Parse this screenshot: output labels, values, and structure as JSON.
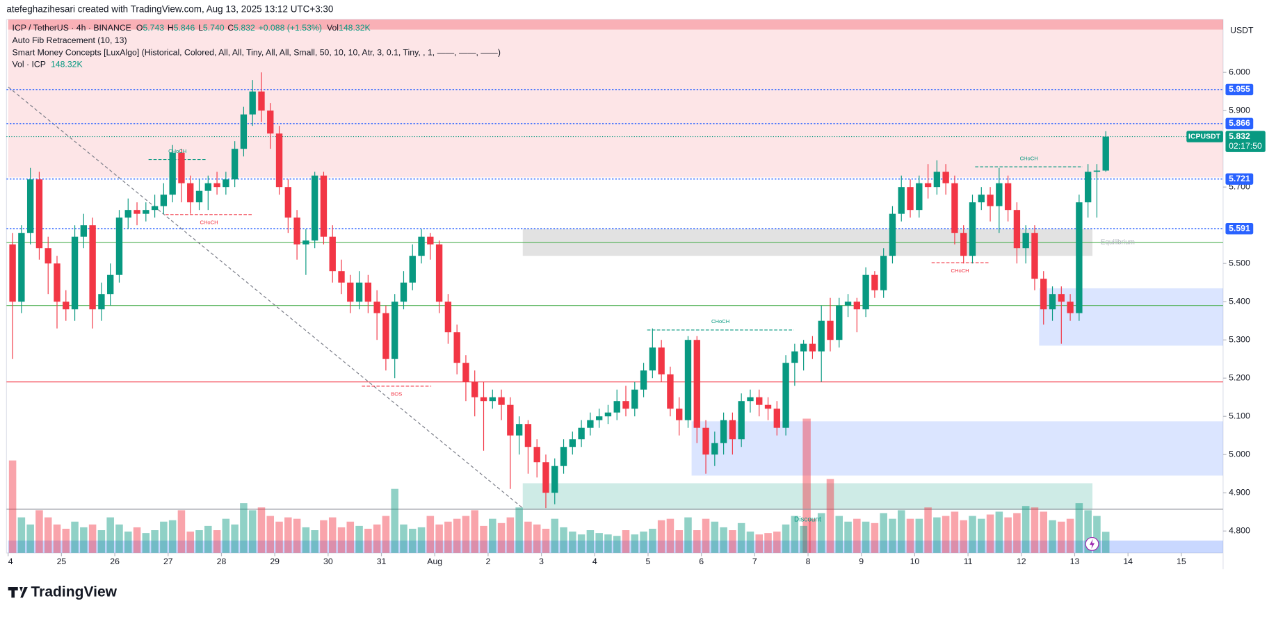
{
  "chart_data": {
    "type": "candlestick",
    "header": "atefeghazihesari created with TradingView.com, Aug 13, 2025 13:12 UTC+3:30",
    "symbol": "ICP / TetherUS · 4h · BINANCE",
    "ohlc_legend": [
      {
        "label": "O",
        "text": "5.743"
      },
      {
        "label": "H",
        "text": "5.846"
      },
      {
        "label": "L",
        "text": "5.740"
      },
      {
        "label": "C",
        "text": "5.832"
      }
    ],
    "change": "+0.088 (+1.53%)",
    "vol_legend": {
      "label": "Vol",
      "text": "148.32K"
    },
    "indicators": [
      "Auto Fib Retracement (10, 13)",
      "Smart Money Concepts [LuxAlgo] (Historical, Colored, All, All, Tiny, All, All, Small, 50, 10, 10, Atr, 3, 0.1, Tiny, , 1, ——, ——, ——)"
    ],
    "vol_indicator": {
      "label": "Vol · ICP",
      "text": "148.32K"
    },
    "currency": "USDT",
    "brand": "TradingView",
    "up_color": "#089981",
    "down_color": "#f23645",
    "ylim": [
      4.7426,
      6.1383
    ],
    "yticks": [
      {
        "value": 6.0,
        "label": "6.000"
      },
      {
        "value": 5.9,
        "label": "5.900"
      },
      {
        "value": 5.7,
        "label": "5.700"
      },
      {
        "value": 5.5,
        "label": "5.500"
      },
      {
        "value": 5.4,
        "label": "5.400"
      },
      {
        "value": 5.3,
        "label": "5.300"
      },
      {
        "value": 5.2,
        "label": "5.200"
      },
      {
        "value": 5.1,
        "label": "5.100"
      },
      {
        "value": 5.0,
        "label": "5.000"
      },
      {
        "value": 4.9,
        "label": "4.900"
      },
      {
        "value": 4.8,
        "label": "4.800"
      }
    ],
    "xlim": [
      0,
      136.7
    ],
    "xticks": [
      {
        "value": 0,
        "label": "4"
      },
      {
        "value": 6,
        "label": "25"
      },
      {
        "value": 12,
        "label": "26"
      },
      {
        "value": 18,
        "label": "27"
      },
      {
        "value": 24,
        "label": "28"
      },
      {
        "value": 30,
        "label": "29"
      },
      {
        "value": 36,
        "label": "30"
      },
      {
        "value": 42,
        "label": "31"
      },
      {
        "value": 48,
        "label": "Aug"
      },
      {
        "value": 54,
        "label": "2"
      },
      {
        "value": 60,
        "label": "3"
      },
      {
        "value": 66,
        "label": "4"
      },
      {
        "value": 72,
        "label": "5"
      },
      {
        "value": 78,
        "label": "6"
      },
      {
        "value": 84,
        "label": "7"
      },
      {
        "value": 90,
        "label": "8"
      },
      {
        "value": 96,
        "label": "9"
      },
      {
        "value": 102,
        "label": "10"
      },
      {
        "value": 108,
        "label": "11"
      },
      {
        "value": 114,
        "label": "12"
      },
      {
        "value": 120,
        "label": "13"
      },
      {
        "value": 126,
        "label": "14"
      },
      {
        "value": 132,
        "label": "15"
      }
    ],
    "candles": [
      [
        5.55,
        5.58,
        5.25,
        5.4
      ],
      [
        5.4,
        5.6,
        5.37,
        5.58
      ],
      [
        5.58,
        5.75,
        5.55,
        5.72
      ],
      [
        5.72,
        5.74,
        5.51,
        5.54
      ],
      [
        5.54,
        5.57,
        5.42,
        5.5
      ],
      [
        5.5,
        5.52,
        5.33,
        5.4
      ],
      [
        5.4,
        5.43,
        5.35,
        5.38
      ],
      [
        5.38,
        5.6,
        5.35,
        5.57
      ],
      [
        5.57,
        5.63,
        5.54,
        5.6
      ],
      [
        5.6,
        5.62,
        5.33,
        5.38
      ],
      [
        5.38,
        5.45,
        5.35,
        5.42
      ],
      [
        5.42,
        5.5,
        5.39,
        5.47
      ],
      [
        5.47,
        5.64,
        5.45,
        5.62
      ],
      [
        5.62,
        5.67,
        5.59,
        5.64
      ],
      [
        5.64,
        5.66,
        5.6,
        5.63
      ],
      [
        5.63,
        5.66,
        5.61,
        5.64
      ],
      [
        5.64,
        5.68,
        5.62,
        5.65
      ],
      [
        5.65,
        5.71,
        5.63,
        5.68
      ],
      [
        5.68,
        5.81,
        5.66,
        5.79
      ],
      [
        5.79,
        5.8,
        5.66,
        5.71
      ],
      [
        5.71,
        5.73,
        5.63,
        5.66
      ],
      [
        5.66,
        5.72,
        5.64,
        5.69
      ],
      [
        5.69,
        5.73,
        5.64,
        5.71
      ],
      [
        5.71,
        5.74,
        5.68,
        5.7
      ],
      [
        5.7,
        5.74,
        5.68,
        5.72
      ],
      [
        5.72,
        5.82,
        5.7,
        5.8
      ],
      [
        5.8,
        5.91,
        5.78,
        5.89
      ],
      [
        5.89,
        5.98,
        5.86,
        5.95
      ],
      [
        5.95,
        6.0,
        5.87,
        5.9
      ],
      [
        5.9,
        5.92,
        5.8,
        5.84
      ],
      [
        5.84,
        5.86,
        5.68,
        5.7
      ],
      [
        5.7,
        5.72,
        5.58,
        5.62
      ],
      [
        5.62,
        5.64,
        5.51,
        5.55
      ],
      [
        5.55,
        5.59,
        5.47,
        5.56
      ],
      [
        5.56,
        5.74,
        5.54,
        5.73
      ],
      [
        5.73,
        5.74,
        5.55,
        5.57
      ],
      [
        5.57,
        5.6,
        5.45,
        5.48
      ],
      [
        5.48,
        5.51,
        5.42,
        5.45
      ],
      [
        5.45,
        5.47,
        5.37,
        5.4
      ],
      [
        5.4,
        5.48,
        5.38,
        5.45
      ],
      [
        5.45,
        5.47,
        5.37,
        5.4
      ],
      [
        5.4,
        5.43,
        5.3,
        5.37
      ],
      [
        5.37,
        5.39,
        5.22,
        5.25
      ],
      [
        5.25,
        5.42,
        5.2,
        5.4
      ],
      [
        5.4,
        5.48,
        5.38,
        5.45
      ],
      [
        5.45,
        5.55,
        5.43,
        5.52
      ],
      [
        5.52,
        5.59,
        5.5,
        5.57
      ],
      [
        5.57,
        5.58,
        5.51,
        5.55
      ],
      [
        5.55,
        5.56,
        5.37,
        5.4
      ],
      [
        5.4,
        5.42,
        5.29,
        5.32
      ],
      [
        5.32,
        5.34,
        5.21,
        5.24
      ],
      [
        5.24,
        5.26,
        5.14,
        5.19
      ],
      [
        5.19,
        5.22,
        5.1,
        5.15
      ],
      [
        5.15,
        5.19,
        5.01,
        5.14
      ],
      [
        5.14,
        5.17,
        5.12,
        5.15
      ],
      [
        5.15,
        5.17,
        5.09,
        5.13
      ],
      [
        5.13,
        5.15,
        4.91,
        5.05
      ],
      [
        5.05,
        5.1,
        5.0,
        5.08
      ],
      [
        5.08,
        5.09,
        4.95,
        5.02
      ],
      [
        5.02,
        5.04,
        4.94,
        4.98
      ],
      [
        4.98,
        5.0,
        4.86,
        4.9
      ],
      [
        4.9,
        4.99,
        4.87,
        4.97
      ],
      [
        4.97,
        5.04,
        4.95,
        5.02
      ],
      [
        5.02,
        5.06,
        5.0,
        5.04
      ],
      [
        5.04,
        5.09,
        5.02,
        5.07
      ],
      [
        5.07,
        5.11,
        5.05,
        5.09
      ],
      [
        5.09,
        5.12,
        5.07,
        5.1
      ],
      [
        5.1,
        5.13,
        5.08,
        5.11
      ],
      [
        5.11,
        5.17,
        5.09,
        5.14
      ],
      [
        5.14,
        5.18,
        5.1,
        5.12
      ],
      [
        5.12,
        5.19,
        5.1,
        5.17
      ],
      [
        5.17,
        5.24,
        5.15,
        5.22
      ],
      [
        5.22,
        5.33,
        5.2,
        5.28
      ],
      [
        5.28,
        5.3,
        5.19,
        5.21
      ],
      [
        5.21,
        5.23,
        5.1,
        5.12
      ],
      [
        5.12,
        5.15,
        5.05,
        5.09
      ],
      [
        5.09,
        5.31,
        5.07,
        5.3
      ],
      [
        5.3,
        5.31,
        5.03,
        5.07
      ],
      [
        5.07,
        5.09,
        4.95,
        5.0
      ],
      [
        5.0,
        5.06,
        4.97,
        5.03
      ],
      [
        5.03,
        5.11,
        5.0,
        5.09
      ],
      [
        5.09,
        5.11,
        5.0,
        5.04
      ],
      [
        5.04,
        5.16,
        5.02,
        5.14
      ],
      [
        5.14,
        5.17,
        5.11,
        5.15
      ],
      [
        5.15,
        5.17,
        5.1,
        5.13
      ],
      [
        5.13,
        5.15,
        5.09,
        5.12
      ],
      [
        5.12,
        5.14,
        5.05,
        5.07
      ],
      [
        5.07,
        5.26,
        5.05,
        5.24
      ],
      [
        5.24,
        5.29,
        5.18,
        5.27
      ],
      [
        5.27,
        5.3,
        5.22,
        5.29
      ],
      [
        5.29,
        5.31,
        5.25,
        5.27
      ],
      [
        5.27,
        5.39,
        5.19,
        5.35
      ],
      [
        5.35,
        5.41,
        5.27,
        5.3
      ],
      [
        5.3,
        5.41,
        5.28,
        5.39
      ],
      [
        5.39,
        5.42,
        5.36,
        5.4
      ],
      [
        5.4,
        5.41,
        5.32,
        5.38
      ],
      [
        5.38,
        5.49,
        5.36,
        5.47
      ],
      [
        5.47,
        5.48,
        5.41,
        5.43
      ],
      [
        5.43,
        5.54,
        5.41,
        5.52
      ],
      [
        5.52,
        5.65,
        5.5,
        5.63
      ],
      [
        5.63,
        5.73,
        5.61,
        5.7
      ],
      [
        5.7,
        5.72,
        5.62,
        5.64
      ],
      [
        5.64,
        5.73,
        5.62,
        5.71
      ],
      [
        5.71,
        5.76,
        5.67,
        5.7
      ],
      [
        5.7,
        5.77,
        5.68,
        5.74
      ],
      [
        5.74,
        5.76,
        5.68,
        5.71
      ],
      [
        5.71,
        5.73,
        5.55,
        5.58
      ],
      [
        5.58,
        5.6,
        5.5,
        5.52
      ],
      [
        5.52,
        5.68,
        5.5,
        5.66
      ],
      [
        5.66,
        5.7,
        5.64,
        5.68
      ],
      [
        5.68,
        5.7,
        5.61,
        5.65
      ],
      [
        5.65,
        5.75,
        5.58,
        5.71
      ],
      [
        5.71,
        5.73,
        5.61,
        5.64
      ],
      [
        5.64,
        5.66,
        5.5,
        5.54
      ],
      [
        5.54,
        5.6,
        5.5,
        5.58
      ],
      [
        5.58,
        5.6,
        5.43,
        5.46
      ],
      [
        5.46,
        5.48,
        5.34,
        5.38
      ],
      [
        5.38,
        5.44,
        5.35,
        5.42
      ],
      [
        5.42,
        5.44,
        5.29,
        5.4
      ],
      [
        5.4,
        5.42,
        5.35,
        5.37
      ],
      [
        5.37,
        5.68,
        5.35,
        5.66
      ],
      [
        5.66,
        5.76,
        5.62,
        5.74
      ],
      [
        5.74,
        5.76,
        5.62,
        5.743
      ],
      [
        5.743,
        5.846,
        5.74,
        5.832
      ]
    ],
    "volume_lim": [
      0,
      800
    ],
    "volume": [
      650,
      250,
      200,
      300,
      250,
      200,
      170,
      220,
      180,
      200,
      160,
      250,
      200,
      150,
      180,
      140,
      160,
      220,
      230,
      300,
      150,
      160,
      190,
      160,
      240,
      200,
      350,
      300,
      320,
      260,
      220,
      250,
      240,
      180,
      160,
      230,
      250,
      180,
      220,
      190,
      170,
      200,
      260,
      450,
      200,
      170,
      180,
      260,
      200,
      220,
      240,
      260,
      300,
      190,
      240,
      210,
      250,
      320,
      220,
      200,
      170,
      240,
      180,
      150,
      130,
      160,
      140,
      130,
      120,
      160,
      130,
      150,
      170,
      230,
      240,
      160,
      250,
      160,
      240,
      220,
      180,
      160,
      210,
      150,
      130,
      140,
      150,
      200,
      260,
      190,
      240,
      280,
      520,
      260,
      220,
      240,
      220,
      210,
      280,
      240,
      300,
      240,
      240,
      320,
      250,
      260,
      290,
      230,
      260,
      240,
      270,
      290,
      250,
      280,
      330,
      320,
      290,
      230,
      220,
      240,
      350,
      300,
      260,
      148.32
    ],
    "zones": [
      {
        "x": [
          0,
          136.7
        ],
        "price": [
          6.1383,
          5.725
        ],
        "color": "#f23645",
        "opacity": 0.13
      },
      {
        "x": [
          0,
          136.7
        ],
        "price": [
          6.1383,
          6.112
        ],
        "color": "#f23645",
        "opacity": 0.3
      },
      {
        "x": [
          57.9,
          122
        ],
        "price": [
          5.59,
          5.52
        ],
        "color": "#9e9e9e",
        "opacity": 0.3,
        "label": "Equilibrium"
      },
      {
        "x": [
          57.9,
          122
        ],
        "price": [
          4.925,
          4.855
        ],
        "color": "#089981",
        "opacity": 0.2,
        "label": "Discount"
      },
      {
        "x": [
          76.9,
          136.7
        ],
        "price": [
          5.087,
          4.945
        ],
        "color": "#2962ff",
        "opacity": 0.17
      },
      {
        "x": [
          116,
          136.7
        ],
        "price": [
          5.435,
          5.285
        ],
        "color": "#2962ff",
        "opacity": 0.17
      },
      {
        "x": [
          0,
          136.7
        ],
        "price": [
          4.775,
          4.7426
        ],
        "color": "#2962ff",
        "opacity": 0.25
      },
      {
        "x": [
          89.4,
          90.3
        ],
        "price": [
          5.094,
          4.7426
        ],
        "color": "#f23645",
        "opacity": 0.45
      }
    ],
    "hlines": [
      {
        "value": 5.555,
        "color": "#4caf50"
      },
      {
        "value": 5.39,
        "color": "#4caf50"
      },
      {
        "value": 5.19,
        "color": "#f23645"
      },
      {
        "value": 4.857,
        "color": "#9598a1"
      }
    ],
    "levels": [
      {
        "value": 5.955,
        "color": "#2962ff"
      },
      {
        "value": 5.866,
        "color": "#2962ff"
      },
      {
        "value": 5.721,
        "color": "#2962ff"
      },
      {
        "value": 5.591,
        "color": "#2962ff"
      }
    ],
    "last_price": {
      "value": 5.832,
      "symbol": "ICPUSDT",
      "countdown": "02:17:50",
      "color": "#089981"
    },
    "trendline": {
      "x": [
        0,
        57.9
      ],
      "price": [
        5.962,
        4.86
      ],
      "color": "#787b86"
    },
    "structures": [
      {
        "text": "CHoCH",
        "price": 5.772,
        "x": [
          15.8,
          22.3
        ],
        "color": "#089981"
      },
      {
        "text": "CHoCH",
        "price": 5.628,
        "x": [
          17.7,
          27.5
        ],
        "color": "#f23645"
      },
      {
        "text": "BOS",
        "price": 5.179,
        "x": [
          39.8,
          47.6
        ],
        "color": "#f23645"
      },
      {
        "text": "CHoCH",
        "price": 5.326,
        "x": [
          71.9,
          88.4
        ],
        "color": "#089981"
      },
      {
        "text": "CHoCH",
        "price": 5.502,
        "x": [
          103.9,
          110.3
        ],
        "color": "#f23645"
      },
      {
        "text": "CHoCH",
        "price": 5.753,
        "x": [
          108.8,
          120.9
        ],
        "color": "#089981"
      }
    ]
  }
}
